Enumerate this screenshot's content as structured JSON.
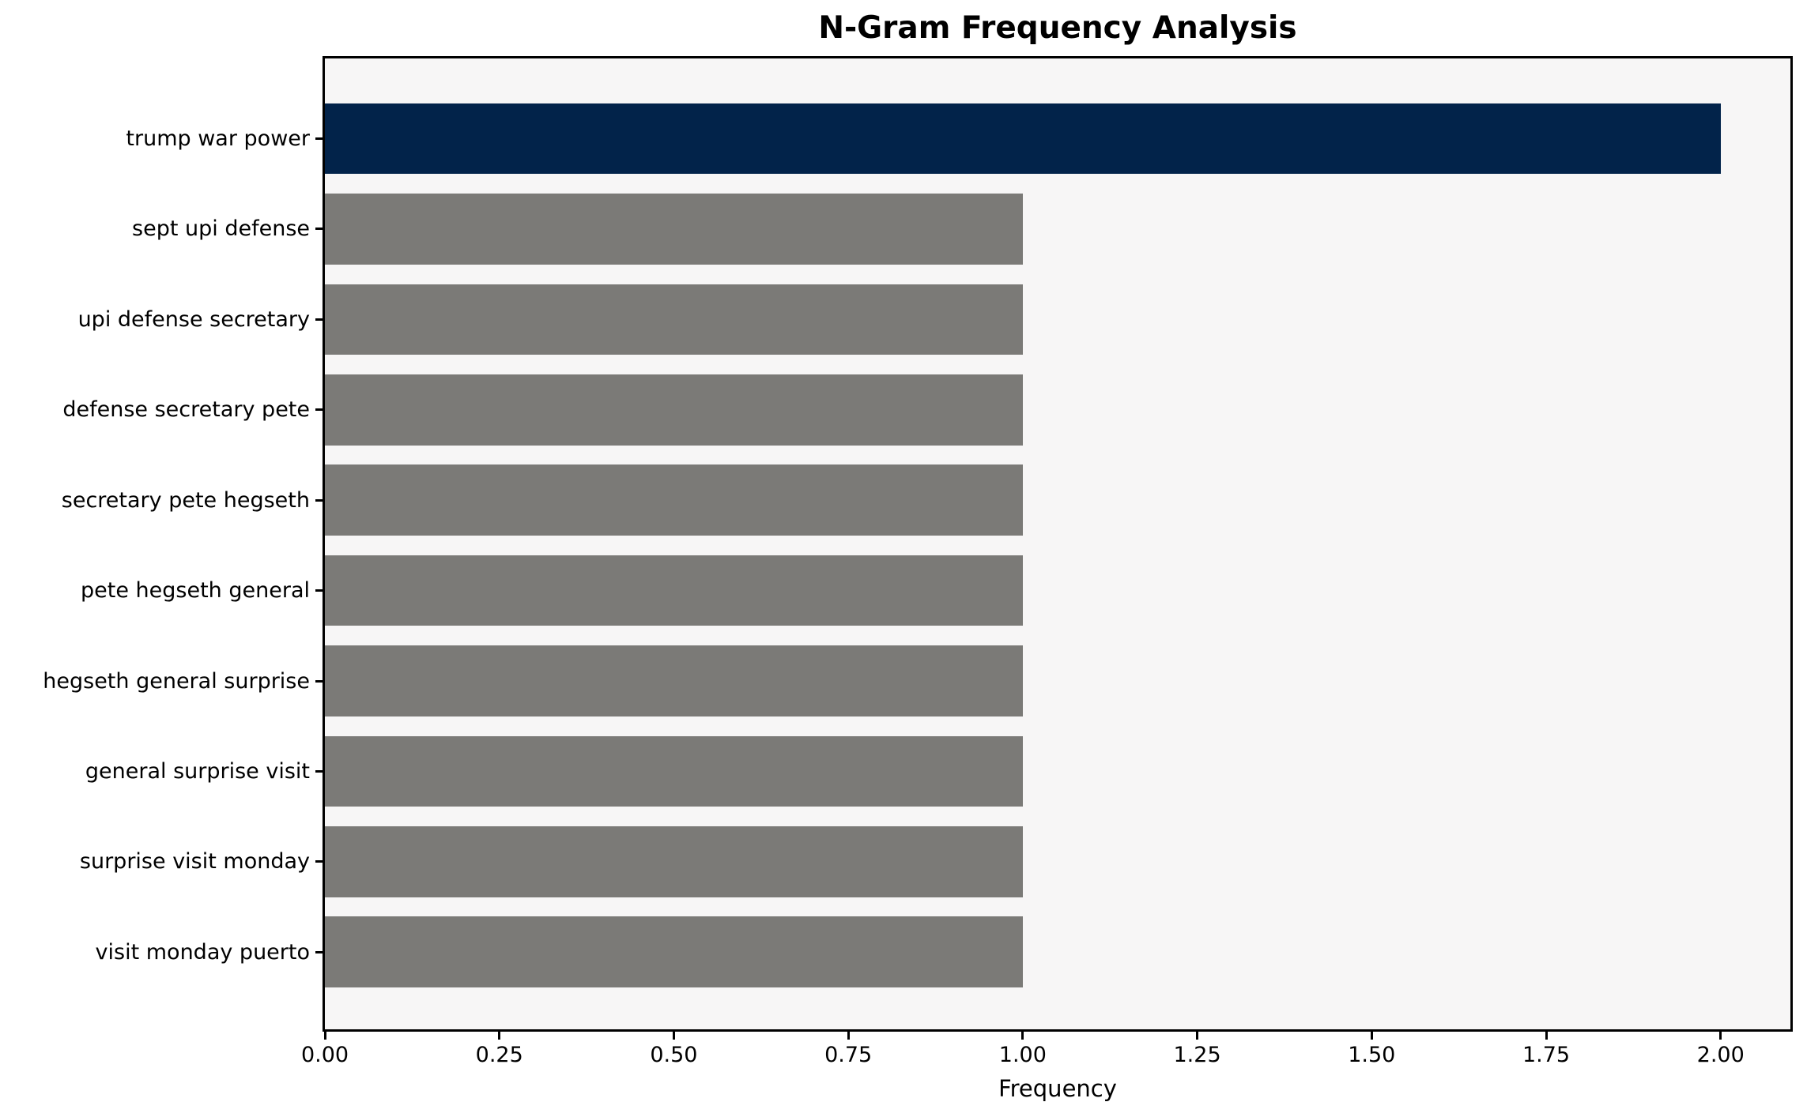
{
  "chart_data": {
    "type": "bar",
    "orientation": "horizontal",
    "title": "N-Gram Frequency Analysis",
    "xlabel": "Frequency",
    "ylabel": "",
    "categories": [
      "trump war power",
      "sept upi defense",
      "upi defense secretary",
      "defense secretary pete",
      "secretary pete hegseth",
      "pete hegseth general",
      "hegseth general surprise",
      "general surprise visit",
      "surprise visit monday",
      "visit monday puerto"
    ],
    "values": [
      2,
      1,
      1,
      1,
      1,
      1,
      1,
      1,
      1,
      1
    ],
    "bar_colors": [
      "#02234a",
      "#7b7a77",
      "#7b7a77",
      "#7b7a77",
      "#7b7a77",
      "#7b7a77",
      "#7b7a77",
      "#7b7a77",
      "#7b7a77",
      "#7b7a77"
    ],
    "xlim": [
      0,
      2.1
    ],
    "xtick_values": [
      0,
      0.25,
      0.5,
      0.75,
      1.0,
      1.25,
      1.5,
      1.75,
      2.0
    ],
    "xtick_labels": [
      "0.00",
      "0.25",
      "0.50",
      "0.75",
      "1.00",
      "1.25",
      "1.50",
      "1.75",
      "2.00"
    ],
    "grid": false,
    "legend": "none",
    "colors": {
      "highlight_bar": "#02234a",
      "default_bar": "#7b7a77",
      "axes_background": "#f7f6f6",
      "figure_background": "#ffffff",
      "spine": "#000000",
      "text": "#000000"
    }
  }
}
